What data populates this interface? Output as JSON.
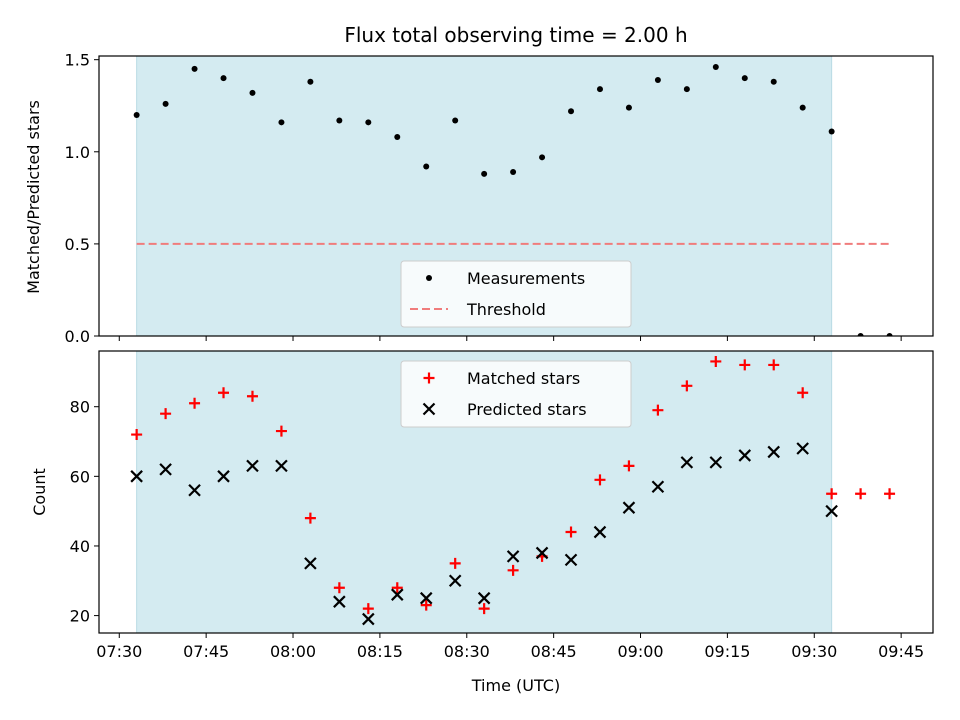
{
  "chart_data": {
    "title": "Flux total observing time = 2.00 h",
    "xlabel": "Time (UTC)",
    "x_tick_labels": [
      "07:30",
      "07:45",
      "08:00",
      "08:15",
      "08:30",
      "08:45",
      "09:00",
      "09:15",
      "09:30",
      "09:45"
    ],
    "x_tick_minutes": [
      450,
      465,
      480,
      495,
      510,
      525,
      540,
      555,
      570,
      585
    ],
    "xlim_minutes": [
      446.5,
      590.5
    ],
    "observing_window_minutes": [
      453,
      573
    ],
    "observing_window_color": "#d4ebf1",
    "charts": [
      {
        "type": "scatter",
        "ylabel": "Matched/Predicted stars",
        "ylim": [
          0,
          1.52
        ],
        "y_ticks": [
          0.0,
          0.5,
          1.0,
          1.5
        ],
        "y_tick_labels": [
          "0.0",
          "0.5",
          "1.0",
          "1.5"
        ],
        "legend_position": "lower-center",
        "series": [
          {
            "name": "Measurements",
            "marker": "dot",
            "color": "#000000",
            "x": [
              453,
              458,
              463,
              468,
              473,
              478,
              483,
              488,
              493,
              498,
              503,
              508,
              513,
              518,
              523,
              528,
              533,
              538,
              543,
              548,
              553,
              558,
              563,
              568,
              573,
              578,
              583
            ],
            "y": [
              1.2,
              1.26,
              1.45,
              1.4,
              1.32,
              1.16,
              1.38,
              1.17,
              1.16,
              1.08,
              0.92,
              1.17,
              0.88,
              0.89,
              0.97,
              1.22,
              1.34,
              1.24,
              1.39,
              1.34,
              1.46,
              1.4,
              1.38,
              1.24,
              1.11,
              0.0,
              0.0
            ]
          },
          {
            "name": "Threshold",
            "type": "line",
            "style": "dashed",
            "color": "#f07c7c",
            "x": [
              453,
              583
            ],
            "y": [
              0.5,
              0.5
            ]
          }
        ]
      },
      {
        "type": "scatter",
        "ylabel": "Count",
        "ylim": [
          15,
          96
        ],
        "y_ticks": [
          20,
          40,
          60,
          80
        ],
        "y_tick_labels": [
          "20",
          "40",
          "60",
          "80"
        ],
        "legend_position": "upper-center",
        "series": [
          {
            "name": "Matched stars",
            "marker": "plus",
            "color": "#ff0000",
            "x": [
              453,
              458,
              463,
              468,
              473,
              478,
              483,
              488,
              493,
              498,
              503,
              508,
              513,
              518,
              523,
              528,
              533,
              538,
              543,
              548,
              553,
              558,
              563,
              568,
              573,
              578,
              583
            ],
            "y": [
              72,
              78,
              81,
              84,
              83,
              73,
              48,
              28,
              22,
              28,
              23,
              35,
              22,
              33,
              37,
              44,
              59,
              63,
              79,
              86,
              93,
              92,
              92,
              84,
              55,
              55,
              55
            ]
          },
          {
            "name": "Predicted stars",
            "marker": "x",
            "color": "#000000",
            "x": [
              453,
              458,
              463,
              468,
              473,
              478,
              483,
              488,
              493,
              498,
              503,
              508,
              513,
              518,
              523,
              528,
              533,
              538,
              543,
              548,
              553,
              558,
              563,
              568,
              573
            ],
            "y": [
              60,
              62,
              56,
              60,
              63,
              63,
              35,
              24,
              19,
              26,
              25,
              30,
              25,
              37,
              38,
              36,
              44,
              51,
              57,
              64,
              64,
              66,
              67,
              68,
              50
            ]
          }
        ]
      }
    ]
  }
}
